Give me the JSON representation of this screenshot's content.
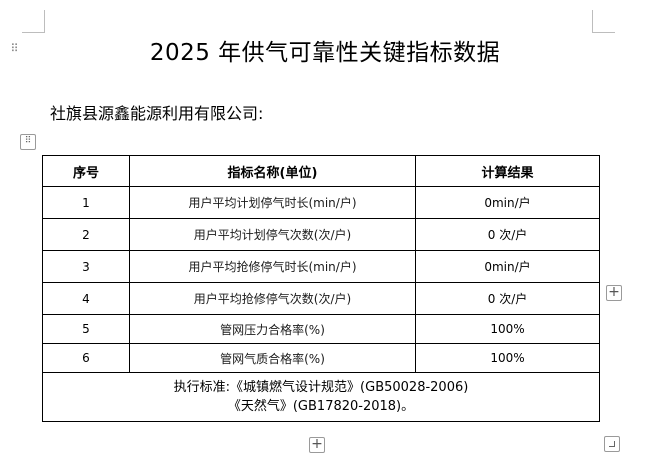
{
  "document": {
    "title": "2025 年供气可靠性关键指标数据",
    "company": "社旗县源鑫能源利用有限公司:"
  },
  "table": {
    "headers": [
      "序号",
      "指标名称(单位)",
      "计算结果"
    ],
    "rows": [
      {
        "no": "1",
        "metric": "用户平均计划停气时长(min/户)",
        "result": "0min/户"
      },
      {
        "no": "2",
        "metric": "用户平均计划停气次数(次/户)",
        "result": "0 次/户"
      },
      {
        "no": "3",
        "metric": "用户平均抢修停气时长(min/户)",
        "result": "0min/户"
      },
      {
        "no": "4",
        "metric": "用户平均抢修停气次数(次/户)",
        "result": "0 次/户"
      },
      {
        "no": "5",
        "metric": "管网压力合格率(%)",
        "result": "100%"
      },
      {
        "no": "6",
        "metric": "管网气质合格率(%)",
        "result": "100%"
      }
    ],
    "footer_line1": "执行标准:《城镇燃气设计规范》(GB50028-2006)",
    "footer_line2": "《天然气》(GB17820-2018)。"
  },
  "icons": {
    "paragraph_handle": "drag-dots-icon",
    "table_handle": "table-move-icon",
    "add_row": "plus-icon",
    "add_column": "plus-icon",
    "resize": "resize-corner-icon"
  }
}
